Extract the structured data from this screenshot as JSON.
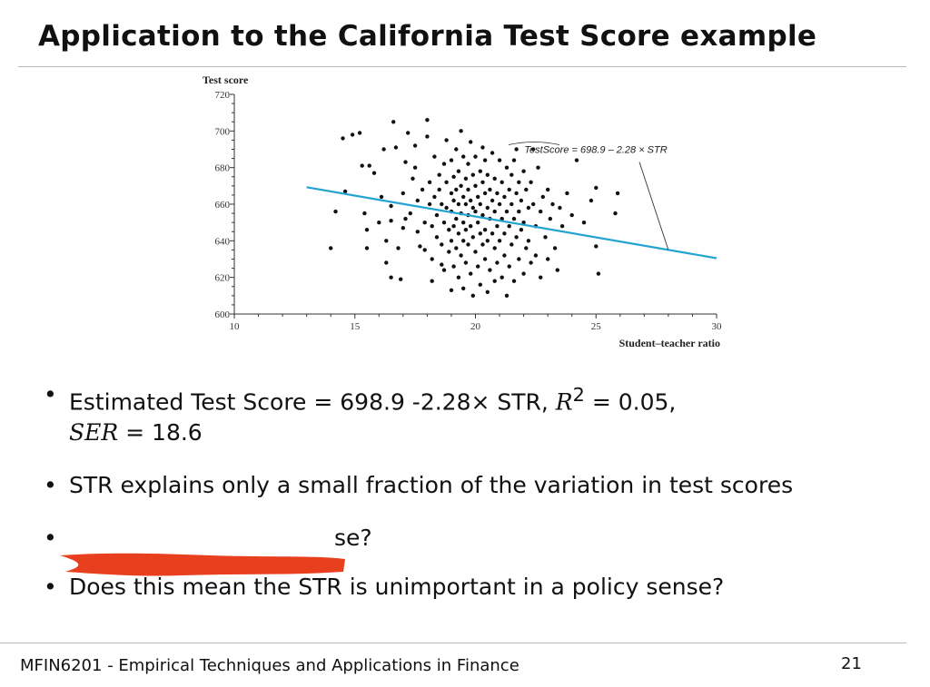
{
  "slide": {
    "title": "Application to the California Test Score example",
    "footer": "MFIN6201 - Empirical Techniques and Applications in Finance",
    "page_number": "21"
  },
  "bullets": {
    "b1_text": "Estimated Test Score = 698.9 -2.28× STR,",
    "b1_r2_symbol": "R",
    "b1_r2_exp": "2",
    "b1_r2_value": " = 0.05,",
    "b1_ser_symbol": "SER",
    "b1_ser_value": " = 18.6",
    "b2_text": "STR explains only a small fraction of the variation in test scores",
    "b3_visible_tail": "se?",
    "b4_text": "Does this mean the STR is unimportant in a policy sense?"
  },
  "colors": {
    "regression_line": "#23a3d0",
    "redaction": "#e8401f"
  },
  "chart_data": {
    "type": "scatter",
    "ylabel": "Test score",
    "xlabel": "Student–teacher ratio",
    "xlim": [
      10,
      30
    ],
    "ylim": [
      600,
      720
    ],
    "x_ticks": [
      "10",
      "15",
      "20",
      "25",
      "30"
    ],
    "y_ticks": [
      "600",
      "620",
      "640",
      "660",
      "680",
      "700",
      "720"
    ],
    "annotation": "TestScore = 698.9 – 2.28 × STR",
    "regression": {
      "intercept": 698.9,
      "slope": -2.28,
      "x_range": [
        13,
        30
      ]
    },
    "points_sample_note": "",
    "points": [
      [
        14,
        636
      ],
      [
        14.2,
        656
      ],
      [
        14.5,
        696
      ],
      [
        14.6,
        667
      ],
      [
        14.9,
        698
      ],
      [
        15.2,
        699
      ],
      [
        15.3,
        681
      ],
      [
        15.4,
        655
      ],
      [
        15.5,
        646
      ],
      [
        15.5,
        636
      ],
      [
        15.6,
        681
      ],
      [
        15.8,
        677
      ],
      [
        16.1,
        664
      ],
      [
        16.2,
        690
      ],
      [
        16.3,
        640
      ],
      [
        16.3,
        628
      ],
      [
        16.5,
        659
      ],
      [
        16.5,
        651
      ],
      [
        16.5,
        620
      ],
      [
        16.6,
        705
      ],
      [
        16.7,
        691
      ],
      [
        16.8,
        636
      ],
      [
        16.9,
        619
      ],
      [
        17.0,
        666
      ],
      [
        17.0,
        647
      ],
      [
        17.1,
        683
      ],
      [
        17.2,
        699
      ],
      [
        17.3,
        655
      ],
      [
        17.4,
        674
      ],
      [
        17.5,
        692
      ],
      [
        17.5,
        680
      ],
      [
        17.6,
        662
      ],
      [
        17.6,
        645
      ],
      [
        17.7,
        637
      ],
      [
        17.8,
        668
      ],
      [
        17.9,
        650
      ],
      [
        17.9,
        635
      ],
      [
        18.0,
        706
      ],
      [
        18.0,
        697
      ],
      [
        18.1,
        672
      ],
      [
        18.1,
        660
      ],
      [
        18.2,
        648
      ],
      [
        18.2,
        630
      ],
      [
        18.2,
        618
      ],
      [
        18.3,
        686
      ],
      [
        18.3,
        664
      ],
      [
        18.4,
        654
      ],
      [
        18.4,
        642
      ],
      [
        18.5,
        676
      ],
      [
        18.5,
        668
      ],
      [
        18.6,
        660
      ],
      [
        18.6,
        638
      ],
      [
        18.7,
        682
      ],
      [
        18.7,
        650
      ],
      [
        18.7,
        624
      ],
      [
        18.8,
        695
      ],
      [
        18.8,
        672
      ],
      [
        18.8,
        658
      ],
      [
        18.9,
        646
      ],
      [
        18.9,
        634
      ],
      [
        19.0,
        684
      ],
      [
        19.0,
        666
      ],
      [
        19.0,
        656
      ],
      [
        19.0,
        640
      ],
      [
        19.1,
        675
      ],
      [
        19.1,
        662
      ],
      [
        19.1,
        648
      ],
      [
        19.1,
        626
      ],
      [
        19.2,
        690
      ],
      [
        19.2,
        668
      ],
      [
        19.2,
        652
      ],
      [
        19.2,
        636
      ],
      [
        19.3,
        678
      ],
      [
        19.3,
        660
      ],
      [
        19.3,
        644
      ],
      [
        19.3,
        620
      ],
      [
        19.4,
        700
      ],
      [
        19.4,
        670
      ],
      [
        19.4,
        655
      ],
      [
        19.4,
        632
      ],
      [
        19.5,
        686
      ],
      [
        19.5,
        664
      ],
      [
        19.5,
        650
      ],
      [
        19.5,
        640
      ],
      [
        19.5,
        614
      ],
      [
        19.6,
        674
      ],
      [
        19.6,
        660
      ],
      [
        19.6,
        646
      ],
      [
        19.6,
        628
      ],
      [
        19.7,
        682
      ],
      [
        19.7,
        668
      ],
      [
        19.7,
        654
      ],
      [
        19.7,
        638
      ],
      [
        19.8,
        694
      ],
      [
        19.8,
        662
      ],
      [
        19.8,
        648
      ],
      [
        19.8,
        622
      ],
      [
        19.9,
        676
      ],
      [
        19.9,
        658
      ],
      [
        19.9,
        642
      ],
      [
        19.9,
        610
      ],
      [
        20.0,
        686
      ],
      [
        20.0,
        670
      ],
      [
        20.0,
        656
      ],
      [
        20.0,
        634
      ],
      [
        20.1,
        664
      ],
      [
        20.1,
        650
      ],
      [
        20.1,
        626
      ],
      [
        20.2,
        678
      ],
      [
        20.2,
        660
      ],
      [
        20.2,
        644
      ],
      [
        20.2,
        616
      ],
      [
        20.3,
        672
      ],
      [
        20.3,
        654
      ],
      [
        20.3,
        638
      ],
      [
        20.4,
        684
      ],
      [
        20.4,
        666
      ],
      [
        20.4,
        646
      ],
      [
        20.4,
        630
      ],
      [
        20.5,
        676
      ],
      [
        20.5,
        658
      ],
      [
        20.5,
        640
      ],
      [
        20.5,
        612
      ],
      [
        20.6,
        668
      ],
      [
        20.6,
        652
      ],
      [
        20.6,
        624
      ],
      [
        20.7,
        688
      ],
      [
        20.7,
        662
      ],
      [
        20.7,
        644
      ],
      [
        20.8,
        674
      ],
      [
        20.8,
        656
      ],
      [
        20.8,
        636
      ],
      [
        20.8,
        618
      ],
      [
        20.9,
        666
      ],
      [
        20.9,
        648
      ],
      [
        20.9,
        628
      ],
      [
        21.0,
        684
      ],
      [
        21.0,
        660
      ],
      [
        21.0,
        640
      ],
      [
        21.1,
        672
      ],
      [
        21.1,
        652
      ],
      [
        21.1,
        620
      ],
      [
        21.2,
        664
      ],
      [
        21.2,
        644
      ],
      [
        21.2,
        632
      ],
      [
        21.3,
        680
      ],
      [
        21.3,
        656
      ],
      [
        21.3,
        610
      ],
      [
        21.4,
        668
      ],
      [
        21.4,
        648
      ],
      [
        21.4,
        626
      ],
      [
        21.5,
        676
      ],
      [
        21.5,
        660
      ],
      [
        21.5,
        638
      ],
      [
        21.6,
        684
      ],
      [
        21.6,
        652
      ],
      [
        21.6,
        618
      ],
      [
        21.7,
        666
      ],
      [
        21.7,
        642
      ],
      [
        21.8,
        672
      ],
      [
        21.8,
        656
      ],
      [
        21.8,
        630
      ],
      [
        21.9,
        662
      ],
      [
        21.9,
        646
      ],
      [
        22.0,
        678
      ],
      [
        22.0,
        650
      ],
      [
        22.0,
        622
      ],
      [
        22.1,
        668
      ],
      [
        22.1,
        636
      ],
      [
        22.2,
        658
      ],
      [
        22.2,
        640
      ],
      [
        22.3,
        672
      ],
      [
        22.3,
        628
      ],
      [
        22.4,
        660
      ],
      [
        22.5,
        648
      ],
      [
        22.5,
        632
      ],
      [
        22.6,
        680
      ],
      [
        22.7,
        656
      ],
      [
        22.7,
        620
      ],
      [
        22.8,
        664
      ],
      [
        22.9,
        642
      ],
      [
        23.0,
        668
      ],
      [
        23.0,
        630
      ],
      [
        23.1,
        652
      ],
      [
        23.2,
        660
      ],
      [
        23.3,
        636
      ],
      [
        23.4,
        624
      ],
      [
        23.5,
        658
      ],
      [
        23.6,
        648
      ],
      [
        23.8,
        666
      ],
      [
        24.0,
        654
      ],
      [
        24.2,
        684
      ],
      [
        24.5,
        650
      ],
      [
        24.8,
        662
      ],
      [
        25.0,
        637
      ],
      [
        25.0,
        669
      ],
      [
        25.1,
        622
      ],
      [
        25.8,
        655
      ],
      [
        25.9,
        666
      ],
      [
        17.1,
        652
      ],
      [
        18.6,
        627
      ],
      [
        20.3,
        691
      ],
      [
        21.7,
        690
      ],
      [
        19.0,
        613
      ],
      [
        16.0,
        650
      ],
      [
        22.4,
        690
      ]
    ]
  }
}
